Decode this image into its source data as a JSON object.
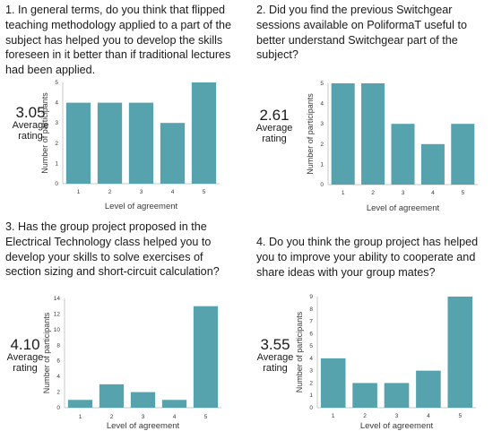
{
  "chart_data": [
    {
      "type": "bar",
      "question": "1. In general terms, do you think that flipped teaching methodology applied to a part of the subject has helped you to develop the skills foreseen in it better than if traditional lectures had been applied.",
      "average": "3.05",
      "average_label": [
        "Average",
        "rating"
      ],
      "categories": [
        "1",
        "2",
        "3",
        "4",
        "5"
      ],
      "values": [
        4,
        4,
        4,
        3,
        5
      ],
      "xlabel": "Level of agreement",
      "ylabel": "Number of participants",
      "ylim": [
        0,
        5
      ],
      "yticks": [
        "0",
        "1",
        "2",
        "3",
        "4",
        "5"
      ],
      "color": "#56a3ad",
      "grid": false
    },
    {
      "type": "bar",
      "question": "2. Did you find the previous Switchgear sessions available on PoliformaT useful to better understand Switchgear part of the subject?",
      "average": "2.61",
      "average_label": [
        "Average",
        "rating"
      ],
      "categories": [
        "1",
        "2",
        "3",
        "4",
        "5"
      ],
      "values": [
        5,
        5,
        3,
        2,
        3
      ],
      "xlabel": "Level of agreement",
      "ylabel": "Number of participants",
      "ylim": [
        0,
        5
      ],
      "yticks": [
        "0",
        "1",
        "2",
        "3",
        "4",
        "5"
      ],
      "color": "#56a3ad",
      "grid": false
    },
    {
      "type": "bar",
      "question": "3. Has the group project proposed in the Electrical Technology class helped you to develop your skills to solve exercises of section sizing and short-circuit calculation?",
      "average": "4.10",
      "average_label": [
        "Average",
        "rating"
      ],
      "categories": [
        "1",
        "2",
        "3",
        "4",
        "5"
      ],
      "values": [
        1,
        3,
        2,
        1,
        13
      ],
      "xlabel": "Level of agreement",
      "ylabel": "Number of participants",
      "ylim": [
        0,
        14
      ],
      "yticks": [
        "0",
        "2",
        "4",
        "6",
        "8",
        "10",
        "12",
        "14"
      ],
      "color": "#56a3ad",
      "grid": false
    },
    {
      "type": "bar",
      "question": "4. Do you think the group project has helped you to improve your ability to cooperate and share ideas with your group mates?",
      "average": "3.55",
      "average_label": [
        "Average",
        "rating"
      ],
      "categories": [
        "1",
        "2",
        "3",
        "4",
        "5"
      ],
      "values": [
        4,
        2,
        2,
        3,
        9
      ],
      "xlabel": "Level of agreement",
      "ylabel": "Number of participants",
      "ylim": [
        0,
        9
      ],
      "yticks": [
        "0",
        "1",
        "2",
        "3",
        "4",
        "5",
        "6",
        "7",
        "8",
        "9"
      ],
      "color": "#56a3ad",
      "grid": false
    }
  ]
}
